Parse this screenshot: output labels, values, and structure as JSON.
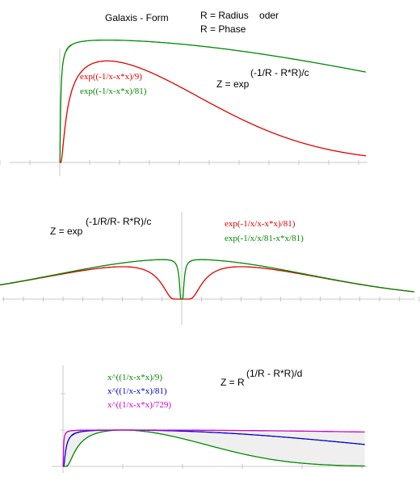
{
  "header": {
    "title": "Galaxis - Form",
    "line1": "R = Radius    oder",
    "line2": "R = Phase"
  },
  "colors": {
    "red": "#e00000",
    "green": "#008a00",
    "blue": "#0000d0",
    "magenta": "#cc00cc",
    "axis": "#c8c8c8",
    "shade": "#efefef"
  },
  "chart_data": [
    {
      "type": "line",
      "equation": {
        "base": "Z = exp",
        "exponent": "(-1/R - R*R)/c"
      },
      "series": [
        {
          "name": "exp((-1/x-x*x)/9)",
          "color": "red",
          "c": 9
        },
        {
          "name": "exp((-1/x-x*x)/81)",
          "color": "green",
          "c": 81
        }
      ],
      "x_range": [
        -1.0,
        5.0
      ],
      "grid": false
    },
    {
      "type": "line",
      "equation": {
        "base": "Z = exp",
        "exponent": "(-1/R/R- R*R)/c"
      },
      "series": [
        {
          "name": "exp(-1/x/x-x*x)/81)",
          "color": "red"
        },
        {
          "name": "exp(-1/x/x/81-x*x/81)",
          "color": "green"
        }
      ],
      "x_range": [
        -12,
        12
      ],
      "grid": false
    },
    {
      "type": "line",
      "equation": {
        "base": "Z = R",
        "exponent": "(1/R - R*R)/d"
      },
      "series": [
        {
          "name": "x^((1/x-x*x)/9)",
          "color": "green",
          "d": 9
        },
        {
          "name": "x^((1/x-x*x)/81)",
          "color": "blue",
          "d": 81
        },
        {
          "name": "x^((1/x-x*x)/729)",
          "color": "magenta",
          "d": 729
        }
      ],
      "x_range": [
        0,
        5
      ],
      "grid": false
    }
  ]
}
